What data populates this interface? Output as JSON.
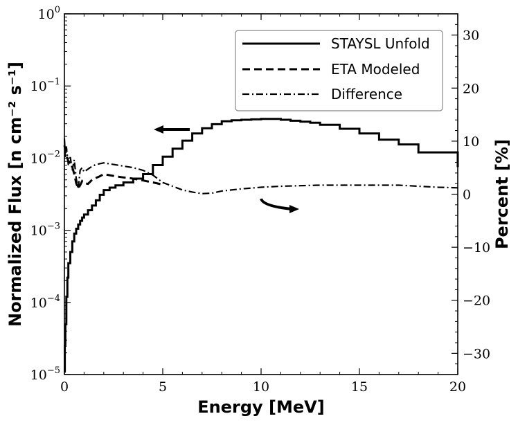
{
  "chart_data": {
    "type": "line",
    "xlabel": "Energy [MeV]",
    "ylabel_left": "Normalized Flux [n cm⁻² s⁻¹]",
    "ylabel_right": "Percent [%]",
    "xlim": [
      0,
      20
    ],
    "ylim_left": [
      1e-05,
      1
    ],
    "yscale_left": "log",
    "ylim_right": [
      -34,
      34
    ],
    "xticks": [
      0,
      5,
      10,
      15,
      20
    ],
    "yticks_left": [
      {
        "base": "10",
        "exp": "−5"
      },
      {
        "base": "10",
        "exp": "−4"
      },
      {
        "base": "10",
        "exp": "−3"
      },
      {
        "base": "10",
        "exp": "−2"
      },
      {
        "base": "10",
        "exp": "−1"
      },
      {
        "base": "10",
        "exp": "0"
      }
    ],
    "yticks_right": [
      "−30",
      "−20",
      "−10",
      "0",
      "10",
      "20",
      "30"
    ],
    "grid": false,
    "legend_position": "top-right",
    "series": [
      {
        "name": "STAYSL Unfold",
        "style": "solid",
        "axis": "left",
        "x": [
          0.0,
          0.02,
          0.05,
          0.1,
          0.15,
          0.2,
          0.3,
          0.4,
          0.5,
          0.6,
          0.7,
          0.8,
          0.9,
          1.0,
          1.2,
          1.4,
          1.6,
          1.8,
          2.0,
          2.3,
          2.6,
          3.0,
          3.5,
          4.0,
          4.5,
          5.0,
          5.5,
          6.0,
          6.5,
          7.0,
          7.5,
          8.0,
          8.5,
          9.0,
          9.5,
          10.0,
          10.5,
          11.0,
          11.5,
          12.0,
          12.5,
          13.0,
          14.0,
          15.0,
          16.0,
          17.0,
          18.0,
          19.0,
          20.0
        ],
        "y": [
          1.1e-05,
          2.5e-05,
          5e-05,
          0.00012,
          0.00022,
          0.00035,
          0.0005,
          0.0007,
          0.0009,
          0.00105,
          0.0012,
          0.00135,
          0.0015,
          0.00165,
          0.0019,
          0.0022,
          0.0026,
          0.0031,
          0.0036,
          0.0039,
          0.0042,
          0.0046,
          0.0052,
          0.006,
          0.008,
          0.0105,
          0.0135,
          0.0175,
          0.022,
          0.026,
          0.0295,
          0.0325,
          0.0335,
          0.034,
          0.0345,
          0.035,
          0.035,
          0.034,
          0.033,
          0.032,
          0.031,
          0.029,
          0.0255,
          0.022,
          0.018,
          0.0155,
          0.012,
          0.012,
          0.0075
        ]
      },
      {
        "name": "ETA Modeled",
        "style": "dashed",
        "axis": "left",
        "x": [
          0.0,
          0.05,
          0.1,
          0.15,
          0.2,
          0.3,
          0.4,
          0.5,
          0.6,
          0.7,
          0.8,
          0.9,
          1.0,
          1.2,
          1.4,
          1.6,
          1.8,
          2.0,
          2.3,
          2.6,
          3.0,
          3.5,
          4.0,
          4.5,
          5.0
        ],
        "y": [
          0.015,
          0.013,
          0.011,
          0.01,
          0.009,
          0.0085,
          0.0075,
          0.006,
          0.0045,
          0.0038,
          0.0042,
          0.0048,
          0.0045,
          0.0044,
          0.005,
          0.0053,
          0.0056,
          0.006,
          0.0058,
          0.0056,
          0.0054,
          0.0052,
          0.0049,
          0.0046,
          0.0043
        ]
      },
      {
        "name": "Difference",
        "style": "dashdot",
        "axis": "right",
        "x": [
          0.0,
          0.05,
          0.1,
          0.2,
          0.3,
          0.4,
          0.5,
          0.6,
          0.7,
          0.8,
          0.9,
          1.0,
          1.3,
          1.6,
          2.0,
          2.5,
          3.0,
          3.5,
          4.0,
          4.5,
          5.0,
          5.5,
          6.0,
          6.5,
          7.0,
          7.5,
          8.0,
          9.0,
          10.0,
          11.0,
          12.0,
          13.0,
          14.0,
          15.0,
          16.0,
          17.0,
          18.0,
          19.0,
          20.0
        ],
        "y": [
          10.5,
          7.0,
          9.0,
          5.5,
          7.0,
          4.5,
          6.5,
          3.0,
          1.0,
          4.5,
          5.0,
          4.2,
          5.0,
          5.6,
          5.9,
          5.6,
          5.3,
          5.0,
          4.5,
          3.6,
          2.2,
          1.5,
          0.8,
          0.4,
          0.1,
          0.2,
          0.6,
          1.0,
          1.3,
          1.5,
          1.6,
          1.7,
          1.7,
          1.7,
          1.7,
          1.7,
          1.5,
          1.3,
          1.2
        ]
      }
    ]
  }
}
